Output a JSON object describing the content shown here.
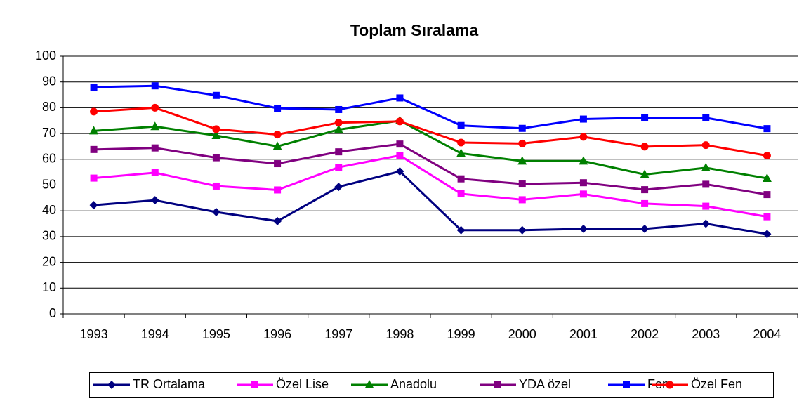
{
  "chart_data": {
    "type": "line",
    "title": "Toplam Sıralama",
    "categories": [
      "1993",
      "1994",
      "1995",
      "1996",
      "1997",
      "1998",
      "1999",
      "2000",
      "2001",
      "2002",
      "2003",
      "2004"
    ],
    "ylim": [
      0,
      100
    ],
    "yticks": [
      0,
      10,
      20,
      30,
      40,
      50,
      60,
      70,
      80,
      90,
      100
    ],
    "grid": true,
    "legend": "bottom",
    "series": [
      {
        "name": "TR Ortalama",
        "color": "#000080",
        "marker": "diamond",
        "values": [
          42.2,
          44.1,
          39.5,
          36,
          49.3,
          55.3,
          32.5,
          32.5,
          33,
          33,
          35,
          31
        ]
      },
      {
        "name": "Özel Lise",
        "color": "#ff00ff",
        "marker": "square",
        "values": [
          52.7,
          54.8,
          49.6,
          48.1,
          56.9,
          61.5,
          46.6,
          44.3,
          46.5,
          42.8,
          41.8,
          37.7
        ]
      },
      {
        "name": "Anadolu",
        "color": "#008000",
        "marker": "triangle",
        "values": [
          71,
          72.7,
          69.2,
          65,
          71.5,
          75,
          62.3,
          59.3,
          59.3,
          54.1,
          56.7,
          52.6
        ]
      },
      {
        "name": "YDA özel",
        "color": "#800080",
        "marker": "square",
        "values": [
          63.8,
          64.4,
          60.6,
          58.3,
          62.9,
          65.9,
          52.4,
          50.4,
          50.9,
          48.2,
          50.3,
          46.3
        ]
      },
      {
        "name": "Fen",
        "color": "#0000ff",
        "marker": "square",
        "values": [
          88,
          88.5,
          84.8,
          79.8,
          79.3,
          83.8,
          73.1,
          72,
          75.6,
          76.1,
          76.1,
          71.9
        ]
      },
      {
        "name": "Özel Fen",
        "color": "#ff0000",
        "marker": "circle",
        "values": [
          78.5,
          80,
          71.7,
          69.6,
          74.2,
          74.7,
          66.5,
          66.1,
          68.7,
          64.9,
          65.5,
          61.4
        ]
      }
    ]
  }
}
